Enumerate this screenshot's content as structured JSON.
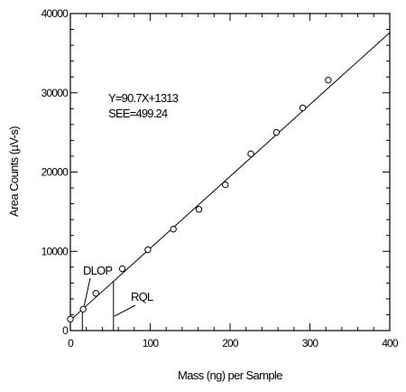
{
  "chart_data": {
    "type": "scatter",
    "title": "",
    "xlabel": "Mass (ng) per Sample",
    "ylabel": "Area Counts (µV-s)",
    "xlim": [
      0,
      400
    ],
    "ylim": [
      0,
      40000
    ],
    "x_ticks": [
      0,
      100,
      200,
      300,
      400
    ],
    "y_ticks": [
      0,
      10000,
      20000,
      30000,
      40000
    ],
    "x_tick_labels": [
      "0",
      "100",
      "200",
      "300",
      "400"
    ],
    "y_tick_labels": [
      "0",
      "10000",
      "20000",
      "30000",
      "40000"
    ],
    "grid": false,
    "series": [
      {
        "points": [
          {
            "x": 0,
            "y": 1450
          },
          {
            "x": 16,
            "y": 2700
          },
          {
            "x": 32,
            "y": 4700
          },
          {
            "x": 65,
            "y": 7800
          },
          {
            "x": 97,
            "y": 10200
          },
          {
            "x": 129,
            "y": 12800
          },
          {
            "x": 161,
            "y": 15300
          },
          {
            "x": 194,
            "y": 18400
          },
          {
            "x": 226,
            "y": 22300
          },
          {
            "x": 258,
            "y": 25000
          },
          {
            "x": 291,
            "y": 28100
          },
          {
            "x": 323,
            "y": 31600
          }
        ]
      }
    ],
    "fit_line": {
      "slope": 90.7,
      "intercept": 1313
    },
    "annotations": {
      "equation": "Y=90.7X+1313",
      "see": "SEE=499.24",
      "dlop_label": "DLOP",
      "rql_label": "RQL"
    },
    "markers": {
      "dlop_x": 15,
      "rql_x": 54
    }
  }
}
